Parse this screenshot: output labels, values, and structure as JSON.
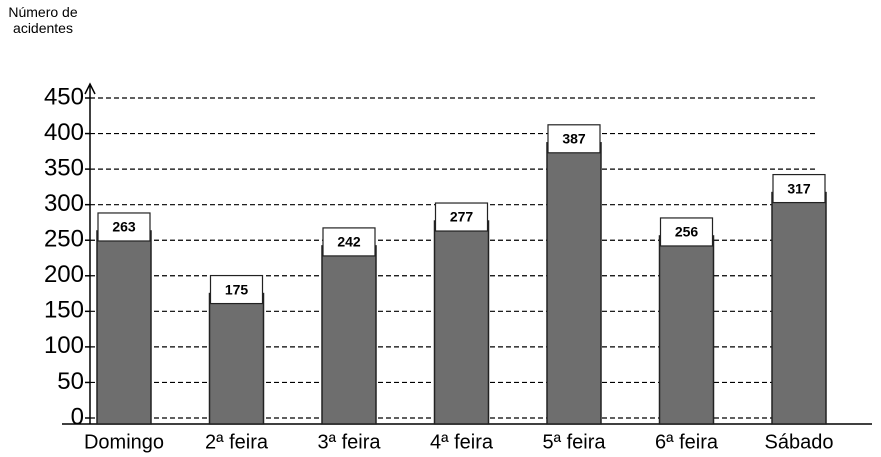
{
  "chart_data": {
    "type": "bar",
    "ylabel": "Número de acidentes",
    "categories": [
      "Domingo",
      "2ª feira",
      "3ª feira",
      "4ª feira",
      "5ª feira",
      "6ª feira",
      "Sábado"
    ],
    "values": [
      263,
      175,
      242,
      277,
      387,
      256,
      317
    ],
    "color": "#6e6e6e",
    "ylim": [
      0,
      450
    ],
    "yticks": [
      0,
      50,
      100,
      150,
      200,
      250,
      300,
      350,
      400,
      450
    ],
    "grid": true
  }
}
